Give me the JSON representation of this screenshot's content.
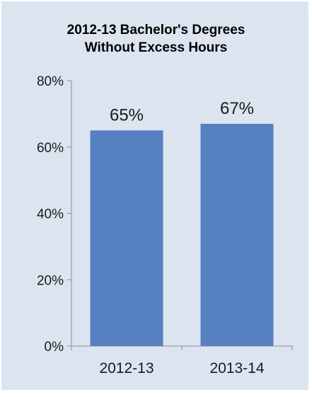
{
  "chart_data": {
    "type": "bar",
    "title_lines": [
      "2012-13 Bachelor's Degrees",
      "Without Excess Hours"
    ],
    "categories": [
      "2012-13",
      "2013-14"
    ],
    "values": [
      65,
      67
    ],
    "value_labels": [
      "65%",
      "67%"
    ],
    "y_unit": "%",
    "ylim": [
      0,
      80
    ],
    "yticks": [
      0,
      20,
      40,
      60,
      80
    ],
    "ytick_labels": [
      "0%",
      "20%",
      "40%",
      "60%",
      "80%"
    ],
    "xlabel": "",
    "ylabel": "",
    "grid": false,
    "legend": "none",
    "colors": {
      "bar": "#5580c2",
      "axis": "#8c8c8c",
      "background": "#dce4ef"
    }
  }
}
